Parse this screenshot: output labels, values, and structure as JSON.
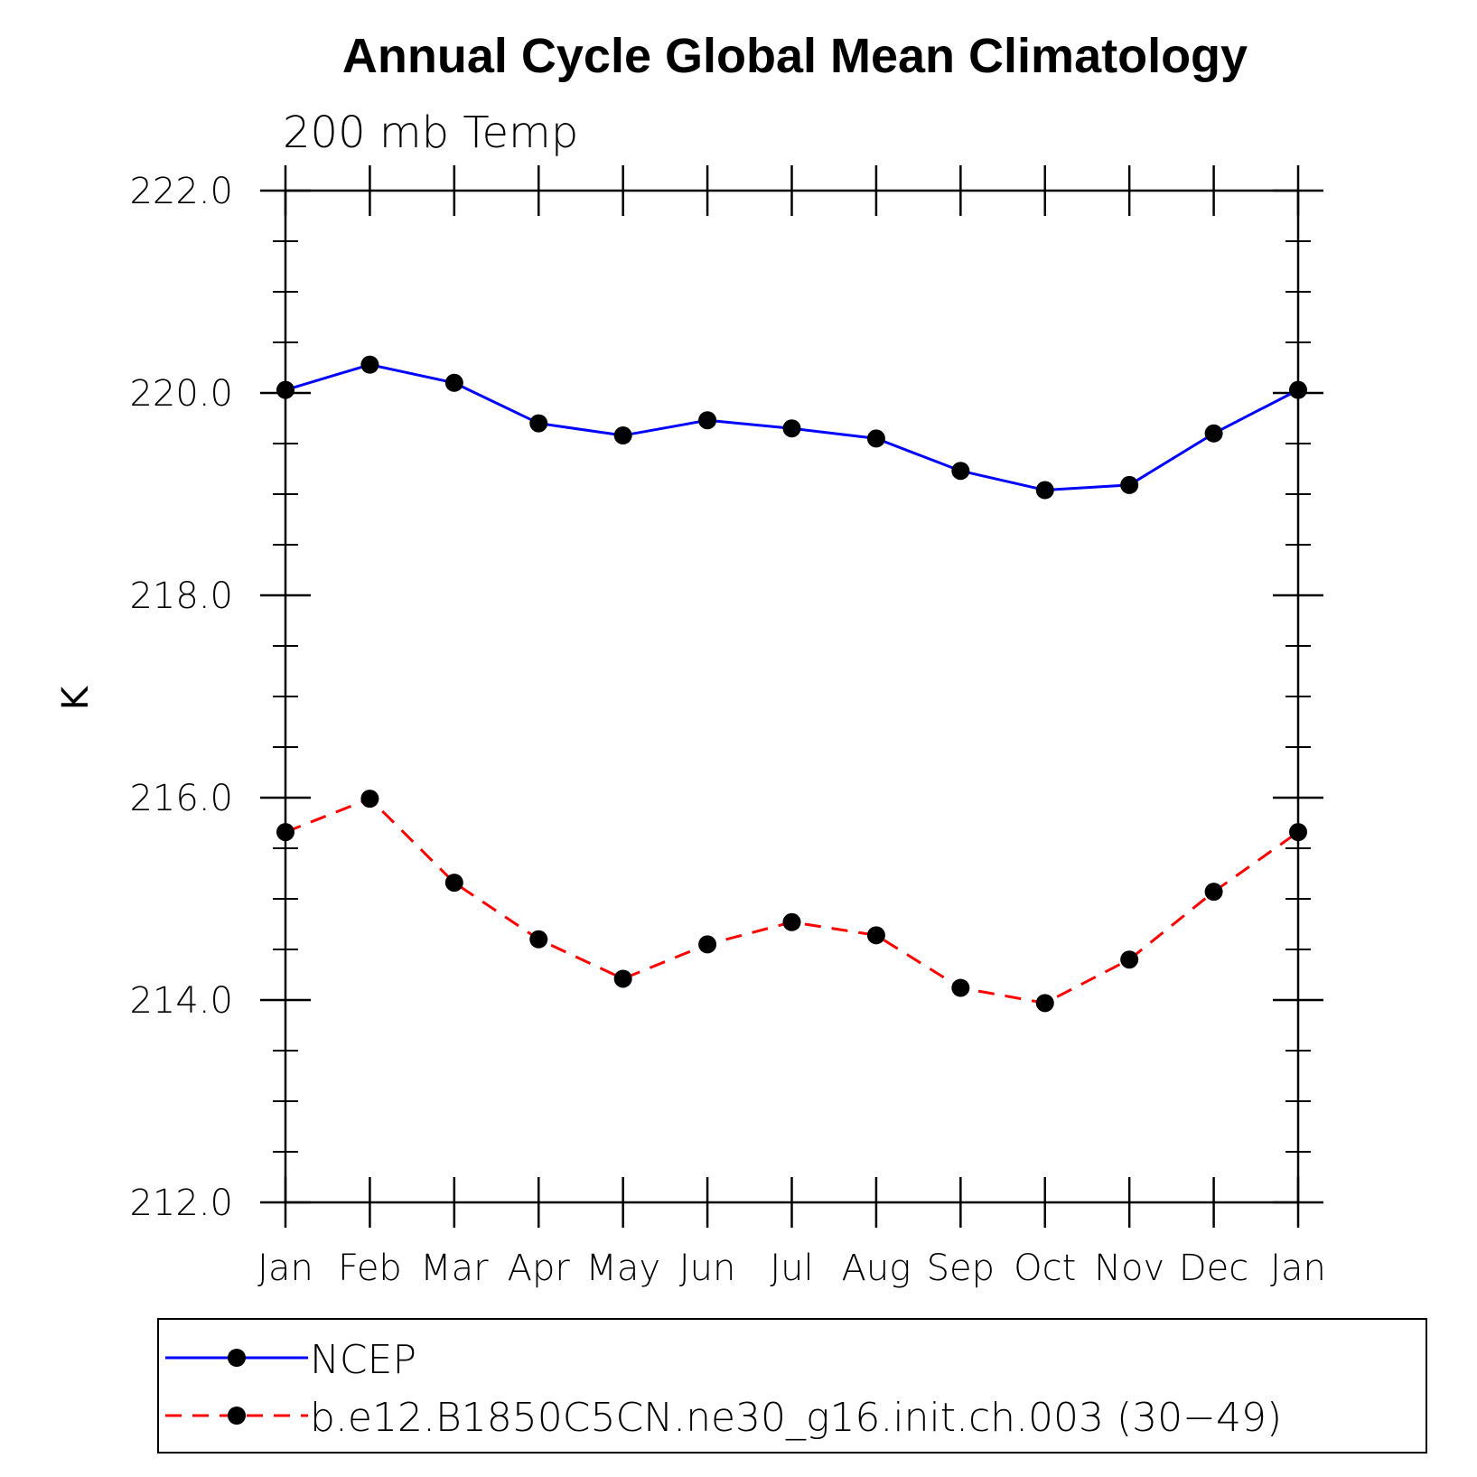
{
  "chart_data": {
    "type": "line",
    "title": "Annual Cycle Global Mean Climatology",
    "subtitle": "200 mb Temp",
    "xlabel": "",
    "ylabel": "K",
    "categories": [
      "Jan",
      "Feb",
      "Mar",
      "Apr",
      "May",
      "Jun",
      "Jul",
      "Aug",
      "Sep",
      "Oct",
      "Nov",
      "Dec",
      "Jan"
    ],
    "ylim": [
      212.0,
      222.0
    ],
    "yticks": [
      "212.0",
      "214.0",
      "216.0",
      "218.0",
      "220.0",
      "222.0"
    ],
    "grid": false,
    "legend_position": "bottom",
    "series": [
      {
        "name": "NCEP",
        "color": "#0000ff",
        "dash": "solid",
        "marker": "filled-circle",
        "values": [
          220.03,
          220.28,
          220.1,
          219.7,
          219.58,
          219.73,
          219.65,
          219.55,
          219.23,
          219.04,
          219.09,
          219.6,
          220.03
        ]
      },
      {
        "name": "b.e12.B1850C5CN.ne30_g16.init.ch.003 (30−49)",
        "color": "#ff0000",
        "dash": "dashed",
        "marker": "filled-circle",
        "values": [
          215.66,
          215.99,
          215.16,
          214.6,
          214.21,
          214.55,
          214.77,
          214.64,
          214.12,
          213.97,
          214.4,
          215.07,
          215.66
        ]
      }
    ]
  }
}
